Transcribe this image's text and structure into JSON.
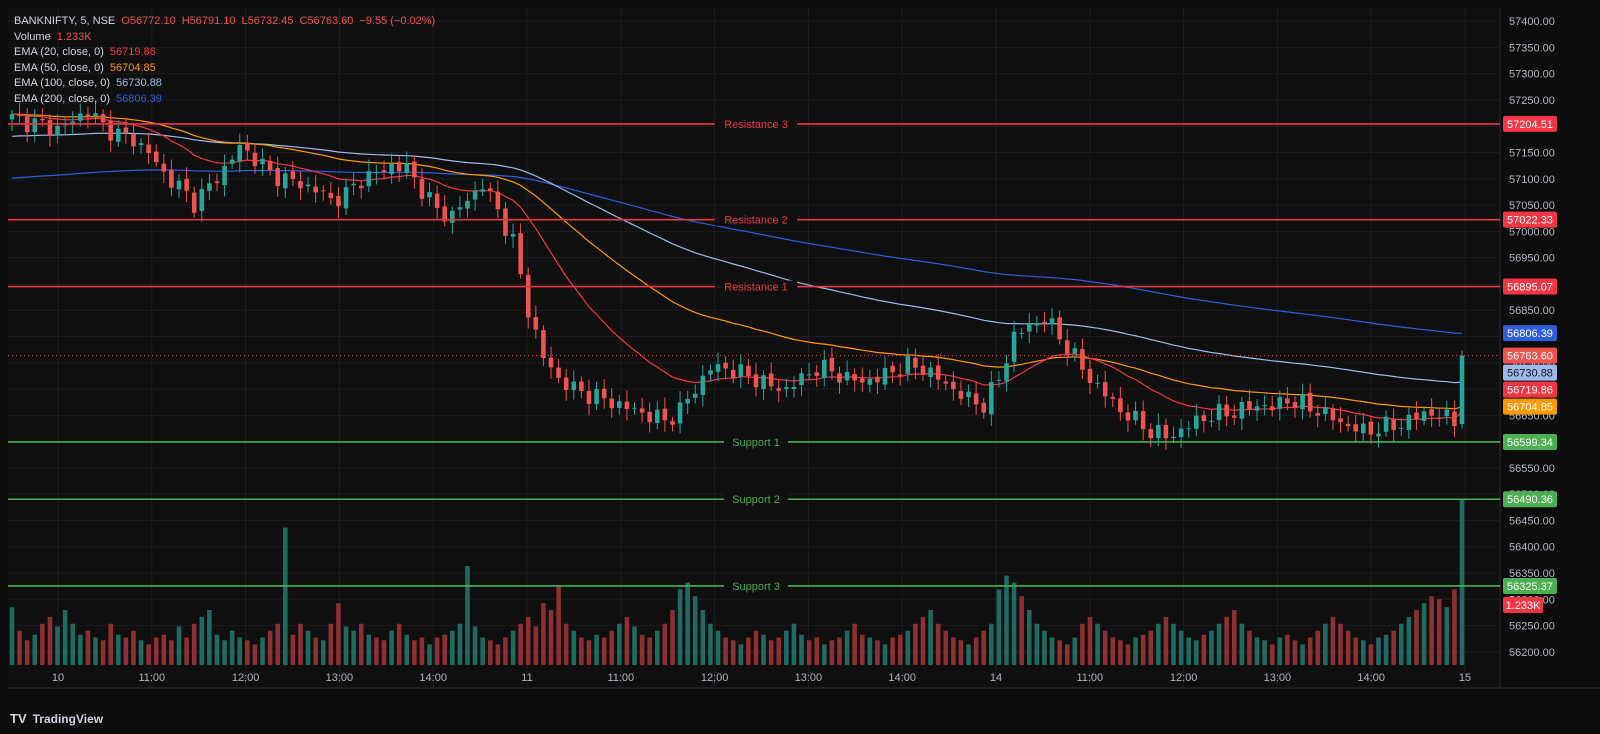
{
  "header": {
    "symbol": "BANKNIFTY, 5, NSE",
    "open": "O56772.10",
    "high": "H56791.10",
    "low": "L56732.45",
    "close": "C56763.60",
    "change": "−9.55 (−0.02%)",
    "volume_label": "Volume",
    "volume_value": "1.233K",
    "ema20_label": "EMA (20, close, 0)",
    "ema20_value": "56719.86",
    "ema50_label": "EMA (50, close, 0)",
    "ema50_value": "56704.85",
    "ema100_label": "EMA (100, close, 0)",
    "ema100_value": "56730.88",
    "ema200_label": "EMA (200, close, 0)",
    "ema200_value": "56806.39"
  },
  "footer": {
    "brand": "TradingView",
    "logo": "TV"
  },
  "colors": {
    "up": "#26a69a",
    "down": "#ef5350",
    "resistance": "#f23645",
    "support": "#4caf50",
    "ema20": "#f23645",
    "ema50": "#ff9800",
    "ema100": "#9fb8e8",
    "ema200": "#2f5ed8",
    "vol_up": "#1f6b62",
    "vol_down": "#8e2f33"
  },
  "chart_data": {
    "type": "candlestick",
    "y_ticks": [
      56200,
      56250,
      56300,
      56350,
      56400,
      56450,
      56500,
      56550,
      56600,
      56650,
      56700,
      56750,
      56800,
      56850,
      56900,
      56950,
      57000,
      57050,
      57100,
      57150,
      57200,
      57250,
      57300,
      57350,
      57400
    ],
    "ylim": [
      56175,
      57425
    ],
    "x_ticks": [
      "10",
      "11:00",
      "12:00",
      "13:00",
      "14:00",
      "11",
      "11:00",
      "12:00",
      "13:00",
      "14:00",
      "14",
      "11:00",
      "12:00",
      "13:00",
      "14:00",
      "15"
    ],
    "levels": [
      {
        "name": "Resistance 3",
        "value": 57204.51,
        "kind": "resistance",
        "label": "57204.51"
      },
      {
        "name": "Resistance 2",
        "value": 57022.33,
        "kind": "resistance",
        "label": "57022.33"
      },
      {
        "name": "Resistance 1",
        "value": 56895.07,
        "kind": "resistance",
        "label": "56895.07"
      },
      {
        "name": "Support 1",
        "value": 56599.34,
        "kind": "support",
        "label": "56599.34"
      },
      {
        "name": "Support 2",
        "value": 56490.36,
        "kind": "support",
        "label": "56490.36"
      },
      {
        "name": "Support 3",
        "value": 56325.37,
        "kind": "support",
        "label": "56325.37"
      }
    ],
    "price_markers": [
      {
        "value": 56806.39,
        "label": "56806.39",
        "color": "ema200"
      },
      {
        "value": 56763.6,
        "label": "56763.60",
        "color": "down"
      },
      {
        "value": 56730.88,
        "label": "56730.88",
        "color": "ema100"
      },
      {
        "value": 56719.86,
        "label": "56719.86",
        "color": "ema20"
      },
      {
        "value": 56704.85,
        "label": "56704.85",
        "color": "ema50"
      }
    ],
    "volume_marker": "1.233K",
    "last_price": 56763.6,
    "close_path": [
      [
        0,
        57215
      ],
      [
        3,
        57205
      ],
      [
        6,
        57195
      ],
      [
        8,
        57210
      ],
      [
        10,
        57230
      ],
      [
        12,
        57200
      ],
      [
        14,
        57185
      ],
      [
        16,
        57175
      ],
      [
        18,
        57150
      ],
      [
        20,
        57110
      ],
      [
        22,
        57085
      ],
      [
        24,
        57055
      ],
      [
        26,
        57085
      ],
      [
        28,
        57120
      ],
      [
        30,
        57160
      ],
      [
        32,
        57140
      ],
      [
        34,
        57110
      ],
      [
        36,
        57100
      ],
      [
        38,
        57090
      ],
      [
        40,
        57080
      ],
      [
        42,
        57060
      ],
      [
        44,
        57070
      ],
      [
        46,
        57100
      ],
      [
        48,
        57110
      ],
      [
        50,
        57125
      ],
      [
        52,
        57120
      ],
      [
        54,
        57080
      ],
      [
        56,
        57040
      ],
      [
        58,
        57030
      ],
      [
        60,
        57060
      ],
      [
        62,
        57090
      ],
      [
        64,
        57040
      ],
      [
        66,
        56980
      ],
      [
        68,
        56850
      ],
      [
        70,
        56760
      ],
      [
        72,
        56720
      ],
      [
        74,
        56700
      ],
      [
        76,
        56690
      ],
      [
        78,
        56680
      ],
      [
        80,
        56670
      ],
      [
        82,
        56660
      ],
      [
        84,
        56650
      ],
      [
        86,
        56640
      ],
      [
        88,
        56660
      ],
      [
        90,
        56700
      ],
      [
        92,
        56740
      ],
      [
        94,
        56740
      ],
      [
        96,
        56730
      ],
      [
        98,
        56720
      ],
      [
        100,
        56705
      ],
      [
        102,
        56700
      ],
      [
        104,
        56720
      ],
      [
        106,
        56740
      ],
      [
        108,
        56735
      ],
      [
        110,
        56720
      ],
      [
        112,
        56715
      ],
      [
        114,
        56720
      ],
      [
        116,
        56735
      ],
      [
        118,
        56745
      ],
      [
        120,
        56740
      ],
      [
        122,
        56720
      ],
      [
        124,
        56700
      ],
      [
        126,
        56680
      ],
      [
        128,
        56670
      ],
      [
        130,
        56720
      ],
      [
        132,
        56800
      ],
      [
        134,
        56820
      ],
      [
        136,
        56835
      ],
      [
        138,
        56800
      ],
      [
        140,
        56760
      ],
      [
        142,
        56720
      ],
      [
        144,
        56690
      ],
      [
        146,
        56660
      ],
      [
        148,
        56640
      ],
      [
        150,
        56620
      ],
      [
        152,
        56610
      ],
      [
        154,
        56620
      ],
      [
        156,
        56640
      ],
      [
        158,
        56650
      ],
      [
        160,
        56655
      ],
      [
        162,
        56660
      ],
      [
        164,
        56670
      ],
      [
        166,
        56665
      ],
      [
        168,
        56680
      ],
      [
        170,
        56670
      ],
      [
        172,
        56660
      ],
      [
        174,
        56645
      ],
      [
        176,
        56630
      ],
      [
        178,
        56620
      ],
      [
        180,
        56625
      ],
      [
        182,
        56630
      ],
      [
        184,
        56640
      ],
      [
        186,
        56655
      ],
      [
        188,
        56650
      ],
      [
        190,
        56640
      ],
      [
        192,
        56645
      ],
      [
        194,
        56700
      ],
      [
        196,
        56760
      ],
      [
        198,
        56770
      ],
      [
        200,
        56765
      ],
      [
        202,
        56763.6
      ]
    ],
    "volume": [
      0.42,
      0.25,
      0.18,
      0.22,
      0.3,
      0.35,
      0.28,
      0.4,
      0.3,
      0.22,
      0.25,
      0.2,
      0.18,
      0.3,
      0.22,
      0.2,
      0.25,
      0.18,
      0.15,
      0.2,
      0.22,
      0.18,
      0.28,
      0.2,
      0.3,
      0.35,
      0.4,
      0.22,
      0.18,
      0.25,
      0.2,
      0.18,
      0.15,
      0.2,
      0.25,
      0.3,
      1.0,
      0.22,
      0.3,
      0.25,
      0.2,
      0.18,
      0.3,
      0.45,
      0.28,
      0.25,
      0.3,
      0.22,
      0.2,
      0.18,
      0.25,
      0.3,
      0.22,
      0.18,
      0.2,
      0.15,
      0.2,
      0.22,
      0.25,
      0.3,
      0.72,
      0.28,
      0.2,
      0.18,
      0.15,
      0.2,
      0.25,
      0.3,
      0.35,
      0.28,
      0.45,
      0.4,
      0.58,
      0.3,
      0.25,
      0.2,
      0.18,
      0.22,
      0.2,
      0.25,
      0.3,
      0.35,
      0.28,
      0.22,
      0.2,
      0.25,
      0.3,
      0.4,
      0.55,
      0.6,
      0.5,
      0.4,
      0.3,
      0.25,
      0.2,
      0.18,
      0.15,
      0.2,
      0.25,
      0.22,
      0.18,
      0.2,
      0.25,
      0.3,
      0.22,
      0.18,
      0.2,
      0.15,
      0.18,
      0.2,
      0.25,
      0.3,
      0.22,
      0.2,
      0.18,
      0.15,
      0.2,
      0.22,
      0.25,
      0.3,
      0.35,
      0.4,
      0.3,
      0.25,
      0.2,
      0.18,
      0.15,
      0.2,
      0.25,
      0.3,
      0.55,
      0.65,
      0.6,
      0.5,
      0.4,
      0.3,
      0.25,
      0.2,
      0.18,
      0.15,
      0.2,
      0.3,
      0.35,
      0.3,
      0.25,
      0.2,
      0.18,
      0.15,
      0.2,
      0.22,
      0.25,
      0.3,
      0.35,
      0.3,
      0.25,
      0.2,
      0.18,
      0.22,
      0.25,
      0.3,
      0.35,
      0.4,
      0.3,
      0.25,
      0.2,
      0.18,
      0.15,
      0.2,
      0.22,
      0.18,
      0.15,
      0.2,
      0.25,
      0.3,
      0.35,
      0.3,
      0.25,
      0.2,
      0.18,
      0.15,
      0.2,
      0.22,
      0.25,
      0.3,
      0.35,
      0.4,
      0.45,
      0.5,
      0.48,
      0.42,
      0.55,
      1.2
    ]
  }
}
